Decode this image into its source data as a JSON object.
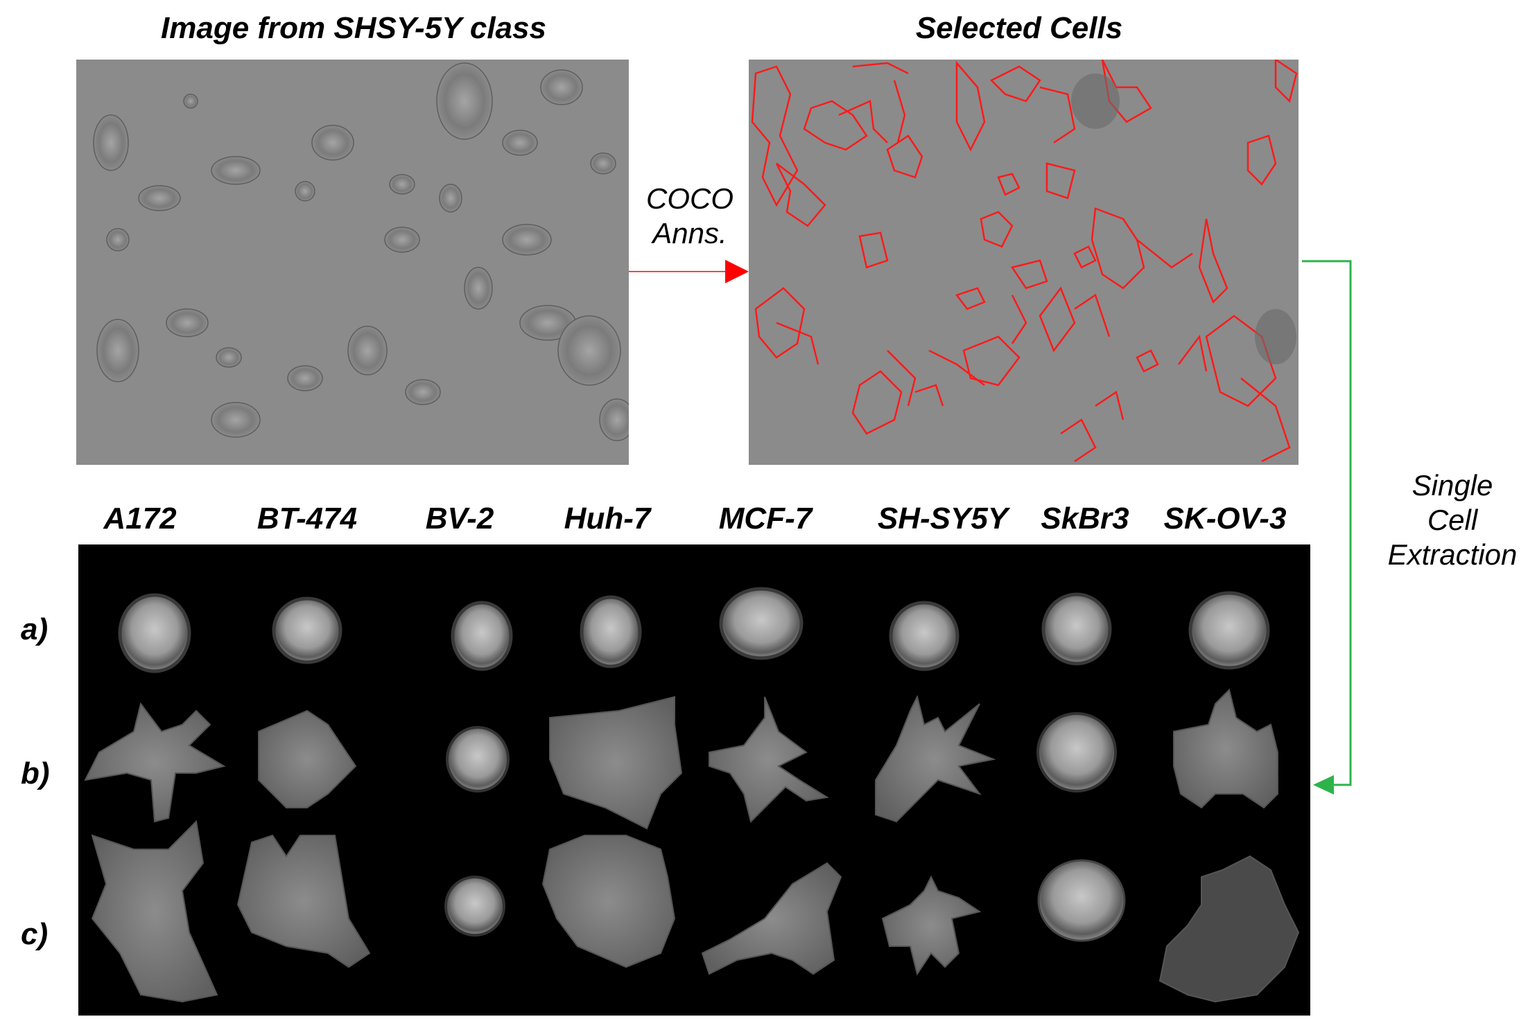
{
  "titles": {
    "left_image": "Image from SHSY-5Y class",
    "right_image": "Selected Cells"
  },
  "arrows": {
    "coco_label_line1": "COCO",
    "coco_label_line2": "Anns.",
    "extraction_line1": "Single",
    "extraction_line2": "Cell",
    "extraction_line3": "Extraction",
    "coco_arrow_color": "#ff0000",
    "extraction_arrow_color": "#2db34a"
  },
  "cell_lines": [
    "A172",
    "BT-474",
    "BV-2",
    "Huh-7",
    "MCF-7",
    "SH-SY5Y",
    "SkBr3",
    "SK-OV-3"
  ],
  "rows": [
    "a)",
    "b)",
    "c)"
  ],
  "colors": {
    "microscopy_bg": "#8a8a8a",
    "annotation": "#ff1a1a",
    "grid_bg": "#000000"
  }
}
